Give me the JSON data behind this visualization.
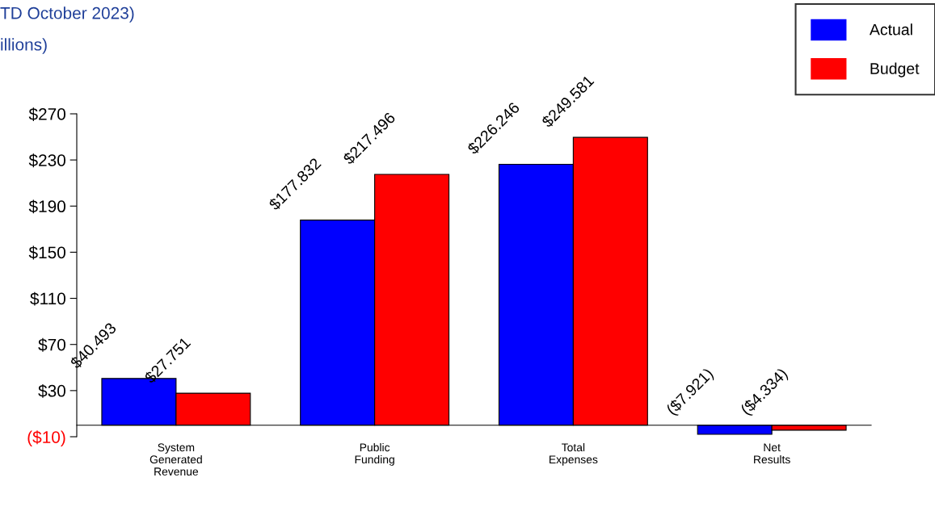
{
  "chart_data": {
    "type": "bar",
    "title": "TD October 2023)",
    "subtitle": "illions)",
    "categories": [
      "System\nGenerated\nRevenue",
      "Public\nFunding",
      "Total\nExpenses",
      "Net\nResults"
    ],
    "series": [
      {
        "name": "Actual",
        "color": "#0000ff",
        "values": [
          40.493,
          177.832,
          226.246,
          -7.921
        ],
        "value_labels": [
          "$40.493",
          "$177.832",
          "$226.246",
          "($7.921)"
        ]
      },
      {
        "name": "Budget",
        "color": "#ff0000",
        "values": [
          27.751,
          217.496,
          249.581,
          -4.334
        ],
        "value_labels": [
          "$27.751",
          "$217.496",
          "$249.581",
          "($4.334)"
        ]
      }
    ],
    "ylim": [
      -10,
      270
    ],
    "yticks": [
      {
        "value": -10,
        "label": "($10)"
      },
      {
        "value": 30,
        "label": "$30"
      },
      {
        "value": 70,
        "label": "$70"
      },
      {
        "value": 110,
        "label": "$110"
      },
      {
        "value": 150,
        "label": "$150"
      },
      {
        "value": 190,
        "label": "$190"
      },
      {
        "value": 230,
        "label": "$230"
      },
      {
        "value": 270,
        "label": "$270"
      }
    ],
    "legend": "top right",
    "grid": false
  }
}
